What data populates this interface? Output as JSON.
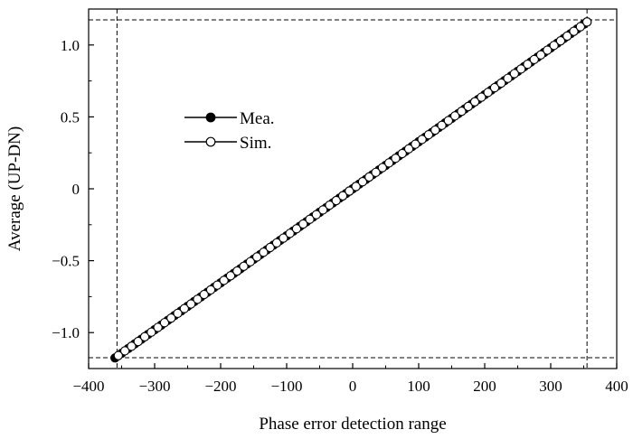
{
  "chart_data": {
    "type": "scatter",
    "xlabel": "Phase error detection range",
    "ylabel": "Average (UP-DN)",
    "xlim": [
      -400,
      400
    ],
    "ylim": [
      -1.25,
      1.25
    ],
    "xticks": [
      -400,
      -300,
      -200,
      -100,
      0,
      100,
      200,
      300,
      400
    ],
    "xtick_labels": [
      "−400",
      "−300",
      "−200",
      "−100",
      "0",
      "100",
      "200",
      "300",
      "400"
    ],
    "yticks": [
      -1.0,
      -0.5,
      0,
      0.5,
      1.0
    ],
    "ytick_labels": [
      "−1.0",
      "−0.5",
      "0",
      "0.5",
      "1.0"
    ],
    "grid": false,
    "legend_position": "upper-left",
    "series": [
      {
        "name": "Mea.",
        "marker": "filled-circle",
        "color": "#000000",
        "x": [
          -360,
          -350,
          -340,
          -330,
          -320,
          -310,
          -300,
          -290,
          -280,
          -270,
          -260,
          -250,
          -240,
          -230,
          -220,
          -210,
          -200,
          -190,
          -180,
          -170,
          -160,
          -150,
          -140,
          -130,
          -120,
          -110,
          -100,
          -90,
          -80,
          -70,
          -60,
          -50,
          -40,
          -30,
          -20,
          -15,
          -10,
          -5,
          0,
          5,
          10,
          20,
          30,
          40,
          50,
          60,
          70,
          80,
          90,
          100,
          110,
          120,
          130,
          140,
          150,
          160,
          170,
          180,
          190,
          200,
          210,
          220,
          230,
          240,
          250,
          260,
          270,
          280,
          290,
          300,
          310,
          320,
          330,
          340,
          350,
          355
        ],
        "y": [
          -1.176,
          -1.144,
          -1.111,
          -1.078,
          -1.046,
          -1.013,
          -0.98,
          -0.948,
          -0.915,
          -0.882,
          -0.85,
          -0.817,
          -0.784,
          -0.752,
          -0.719,
          -0.686,
          -0.654,
          -0.621,
          -0.588,
          -0.556,
          -0.523,
          -0.49,
          -0.458,
          -0.425,
          -0.392,
          -0.359,
          -0.327,
          -0.294,
          -0.261,
          -0.229,
          -0.196,
          -0.163,
          -0.131,
          -0.098,
          -0.065,
          -0.049,
          -0.033,
          -0.016,
          0.0,
          0.016,
          0.033,
          0.065,
          0.098,
          0.131,
          0.163,
          0.196,
          0.229,
          0.261,
          0.294,
          0.327,
          0.359,
          0.392,
          0.425,
          0.458,
          0.49,
          0.523,
          0.556,
          0.588,
          0.621,
          0.654,
          0.686,
          0.719,
          0.752,
          0.784,
          0.817,
          0.85,
          0.882,
          0.915,
          0.948,
          0.98,
          1.013,
          1.046,
          1.078,
          1.111,
          1.144,
          1.16
        ]
      },
      {
        "name": "Sim.",
        "marker": "open-circle",
        "color": "#000000",
        "x": [
          -355,
          -345,
          -335,
          -325,
          -315,
          -305,
          -295,
          -285,
          -275,
          -265,
          -255,
          -245,
          -235,
          -225,
          -215,
          -205,
          -195,
          -185,
          -175,
          -165,
          -155,
          -145,
          -135,
          -125,
          -115,
          -105,
          -95,
          -85,
          -75,
          -65,
          -55,
          -45,
          -35,
          -25,
          -15,
          -5,
          5,
          15,
          25,
          35,
          45,
          55,
          65,
          75,
          85,
          95,
          105,
          115,
          125,
          135,
          145,
          155,
          165,
          175,
          185,
          195,
          205,
          215,
          225,
          235,
          245,
          255,
          265,
          275,
          285,
          295,
          305,
          315,
          325,
          335,
          345,
          355
        ],
        "y": [
          -1.16,
          -1.127,
          -1.095,
          -1.062,
          -1.029,
          -0.997,
          -0.964,
          -0.931,
          -0.899,
          -0.866,
          -0.833,
          -0.801,
          -0.768,
          -0.735,
          -0.703,
          -0.67,
          -0.637,
          -0.605,
          -0.572,
          -0.539,
          -0.507,
          -0.474,
          -0.441,
          -0.408,
          -0.376,
          -0.343,
          -0.31,
          -0.278,
          -0.245,
          -0.212,
          -0.18,
          -0.147,
          -0.114,
          -0.082,
          -0.049,
          -0.016,
          0.016,
          0.049,
          0.082,
          0.114,
          0.147,
          0.18,
          0.212,
          0.245,
          0.278,
          0.31,
          0.343,
          0.376,
          0.408,
          0.441,
          0.474,
          0.507,
          0.539,
          0.572,
          0.605,
          0.637,
          0.67,
          0.703,
          0.735,
          0.768,
          0.801,
          0.833,
          0.866,
          0.899,
          0.931,
          0.964,
          0.997,
          1.029,
          1.062,
          1.095,
          1.127,
          1.16
        ]
      }
    ],
    "reference_lines": {
      "vertical_x": [
        -357,
        355
      ],
      "horizontal_y": [
        1.175,
        -1.175
      ],
      "style": "dashed"
    }
  }
}
